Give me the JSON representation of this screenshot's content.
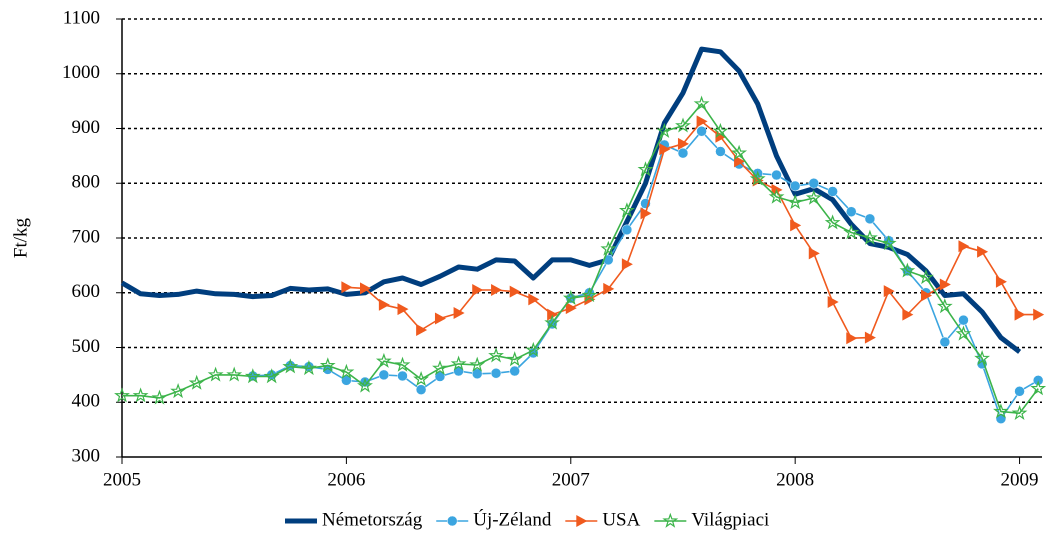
{
  "chart_data": {
    "type": "line",
    "y_label": "Ft/kg",
    "x": [
      2005,
      2005.083,
      2005.167,
      2005.25,
      2005.333,
      2005.417,
      2005.5,
      2005.583,
      2005.667,
      2005.75,
      2005.833,
      2005.917,
      2006,
      2006.083,
      2006.167,
      2006.25,
      2006.333,
      2006.417,
      2006.5,
      2006.583,
      2006.667,
      2006.75,
      2006.833,
      2006.917,
      2007,
      2007.083,
      2007.167,
      2007.25,
      2007.333,
      2007.417,
      2007.5,
      2007.583,
      2007.667,
      2007.75,
      2007.833,
      2007.917,
      2008,
      2008.083,
      2008.167,
      2008.25,
      2008.333,
      2008.417,
      2008.5,
      2008.583,
      2008.667,
      2008.75,
      2008.833,
      2008.917,
      2009,
      2009.083
    ],
    "xlim": [
      2005,
      2009.1
    ],
    "xticks": [
      2005,
      2006,
      2007,
      2008,
      2009
    ],
    "ylim": [
      300,
      1100
    ],
    "yticks": [
      300,
      400,
      500,
      600,
      700,
      800,
      900,
      1000,
      1100
    ],
    "grid": true,
    "legend": "bottom",
    "series": [
      {
        "name": "Németország",
        "color": "#003e7e",
        "marker": "none",
        "values": [
          618,
          598,
          595,
          597,
          603,
          598,
          597,
          593,
          595,
          608,
          605,
          607,
          597,
          600,
          620,
          627,
          615,
          630,
          647,
          643,
          660,
          658,
          627,
          660,
          660,
          650,
          660,
          730,
          800,
          910,
          965,
          1045,
          1040,
          1005,
          945,
          850,
          780,
          790,
          770,
          725,
          690,
          683,
          670,
          640,
          595,
          598,
          565,
          518,
          492,
          null
        ]
      },
      {
        "name": "Új-Zéland",
        "color": "#3ba5e0",
        "marker": "circle",
        "values": [
          null,
          null,
          null,
          null,
          null,
          null,
          null,
          448,
          450,
          467,
          465,
          460,
          440,
          437,
          450,
          448,
          423,
          447,
          457,
          452,
          453,
          457,
          490,
          543,
          590,
          600,
          660,
          715,
          763,
          870,
          855,
          895,
          858,
          835,
          818,
          815,
          795,
          800,
          785,
          748,
          735,
          695,
          640,
          600,
          510,
          550,
          470,
          370,
          420,
          440
        ]
      },
      {
        "name": "USA",
        "color": "#f05a1e",
        "marker": "triangle",
        "values": [
          null,
          null,
          null,
          null,
          null,
          null,
          null,
          null,
          null,
          null,
          null,
          null,
          610,
          608,
          578,
          570,
          532,
          553,
          563,
          605,
          605,
          602,
          588,
          560,
          572,
          588,
          607,
          652,
          745,
          862,
          872,
          913,
          885,
          840,
          805,
          788,
          723,
          672,
          583,
          517,
          518,
          603,
          560,
          595,
          615,
          685,
          675,
          620,
          560,
          560
        ]
      },
      {
        "name": "Világpiaci",
        "color": "#3cb44a",
        "marker": "star",
        "values": [
          412,
          412,
          408,
          420,
          435,
          450,
          450,
          447,
          447,
          465,
          462,
          467,
          455,
          430,
          475,
          468,
          442,
          462,
          470,
          468,
          485,
          478,
          495,
          545,
          590,
          595,
          680,
          750,
          825,
          895,
          905,
          945,
          895,
          855,
          808,
          775,
          765,
          773,
          728,
          710,
          700,
          690,
          640,
          628,
          575,
          525,
          480,
          383,
          380,
          425
        ]
      }
    ]
  }
}
